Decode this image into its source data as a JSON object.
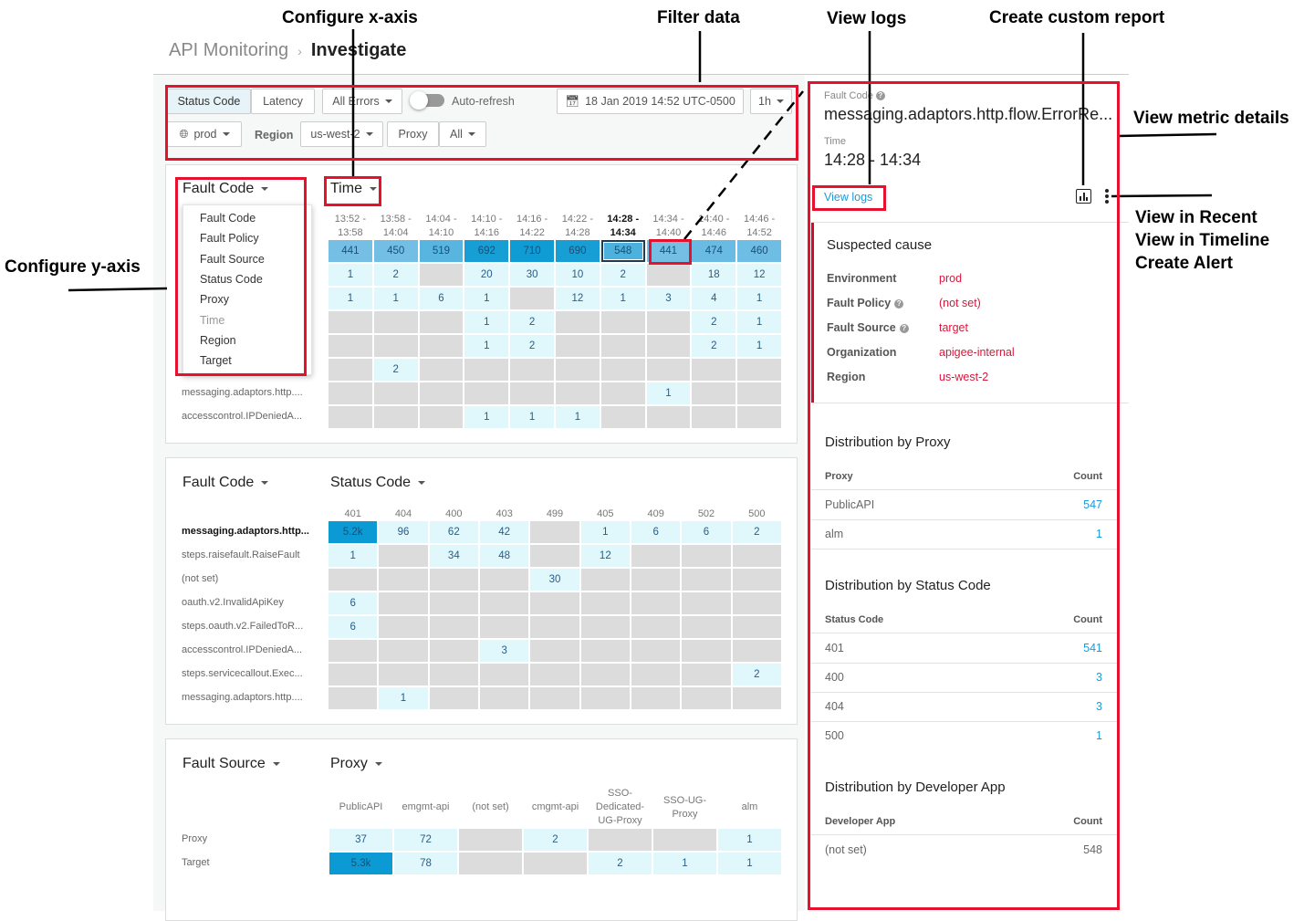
{
  "breadcrumb": {
    "parent": "API Monitoring",
    "current": "Investigate"
  },
  "toolbar": {
    "metric_tabs": [
      {
        "label": "Status Code",
        "selected": true
      },
      {
        "label": "Latency",
        "selected": false
      }
    ],
    "errors_dropdown": "All Errors",
    "auto_refresh": {
      "label": "Auto-refresh",
      "on": false
    },
    "date": "18 Jan 2019 14:52 UTC-0500",
    "range": "1h",
    "environment": "prod",
    "region_label": "Region",
    "region": "us-west-2",
    "proxy_label": "Proxy",
    "proxy": "All"
  },
  "heatmaps": [
    {
      "y_dim": "Fault Code",
      "x_dim": "Time",
      "columns": [
        "13:52 -\n13:58",
        "13:58 -\n14:04",
        "14:04 -\n14:10",
        "14:10 -\n14:16",
        "14:16 -\n14:22",
        "14:22 -\n14:28",
        "14:28 -\n14:34",
        "14:34 -\n14:40",
        "14:40 -\n14:46",
        "14:46 -\n14:52"
      ],
      "selected_column": 6,
      "rows": [
        {
          "label": "",
          "values": [
            "441",
            "450",
            "519",
            "692",
            "710",
            "690",
            "548",
            "441",
            "474",
            "460"
          ]
        },
        {
          "label": "",
          "values": [
            "1",
            "2",
            null,
            "20",
            "30",
            "10",
            "2",
            null,
            "18",
            "12"
          ]
        },
        {
          "label": "",
          "values": [
            "1",
            "1",
            "6",
            "1",
            null,
            "12",
            "1",
            "3",
            "4",
            "1"
          ]
        },
        {
          "label": "",
          "values": [
            null,
            null,
            null,
            "1",
            "2",
            null,
            null,
            null,
            "2",
            "1"
          ]
        },
        {
          "label": "",
          "values": [
            null,
            null,
            null,
            "1",
            "2",
            null,
            null,
            null,
            "2",
            "1"
          ]
        },
        {
          "label": "",
          "values": [
            null,
            "2",
            null,
            null,
            null,
            null,
            null,
            null,
            null,
            null
          ]
        },
        {
          "label": "messaging.adaptors.http....",
          "values": [
            null,
            null,
            null,
            null,
            null,
            null,
            null,
            "1",
            null,
            null
          ]
        },
        {
          "label": "accesscontrol.IPDeniedA...",
          "values": [
            null,
            null,
            null,
            "1",
            "1",
            "1",
            null,
            null,
            null,
            null
          ]
        }
      ],
      "selected_cell": [
        0,
        6
      ],
      "y_menu": {
        "open": true,
        "items": [
          {
            "label": "Fault Code",
            "disabled": false
          },
          {
            "label": "Fault Policy",
            "disabled": false
          },
          {
            "label": "Fault Source",
            "disabled": false
          },
          {
            "label": "Status Code",
            "disabled": false
          },
          {
            "label": "Proxy",
            "disabled": false
          },
          {
            "label": "Time",
            "disabled": true
          },
          {
            "label": "Region",
            "disabled": false
          },
          {
            "label": "Target",
            "disabled": false
          }
        ]
      }
    },
    {
      "y_dim": "Fault Code",
      "x_dim": "Status Code",
      "columns": [
        "401",
        "404",
        "400",
        "403",
        "499",
        "405",
        "409",
        "502",
        "500"
      ],
      "rows": [
        {
          "label": "messaging.adaptors.http...",
          "bold": true,
          "values": [
            "5.2k",
            "96",
            "62",
            "42",
            null,
            "1",
            "6",
            "6",
            "2"
          ]
        },
        {
          "label": "steps.raisefault.RaiseFault",
          "values": [
            "1",
            null,
            "34",
            "48",
            null,
            "12",
            null,
            null,
            null
          ]
        },
        {
          "label": "(not set)",
          "values": [
            null,
            null,
            null,
            null,
            "30",
            null,
            null,
            null,
            null
          ]
        },
        {
          "label": "oauth.v2.InvalidApiKey",
          "values": [
            "6",
            null,
            null,
            null,
            null,
            null,
            null,
            null,
            null
          ]
        },
        {
          "label": "steps.oauth.v2.FailedToR...",
          "values": [
            "6",
            null,
            null,
            null,
            null,
            null,
            null,
            null,
            null
          ]
        },
        {
          "label": "accesscontrol.IPDeniedA...",
          "values": [
            null,
            null,
            null,
            "3",
            null,
            null,
            null,
            null,
            null
          ]
        },
        {
          "label": "steps.servicecallout.Exec...",
          "values": [
            null,
            null,
            null,
            null,
            null,
            null,
            null,
            null,
            "2"
          ]
        },
        {
          "label": "messaging.adaptors.http....",
          "values": [
            null,
            "1",
            null,
            null,
            null,
            null,
            null,
            null,
            null
          ]
        }
      ]
    },
    {
      "y_dim": "Fault Source",
      "x_dim": "Proxy",
      "columns": [
        "PublicAPI",
        "emgmt-api",
        "(not set)",
        "cmgmt-api",
        "SSO-\nDedicated-\nUG-Proxy",
        "SSO-UG-\nProxy",
        "alm"
      ],
      "rows": [
        {
          "label": "Proxy",
          "values": [
            "37",
            "72",
            null,
            "2",
            null,
            null,
            "1"
          ]
        },
        {
          "label": "Target",
          "values": [
            "5.3k",
            "78",
            null,
            null,
            "2",
            "1",
            "1"
          ]
        }
      ]
    }
  ],
  "detail": {
    "fault_code_label": "Fault Code",
    "fault_code": "messaging.adaptors.http.flow.ErrorRe...",
    "time_label": "Time",
    "time": "14:28 - 14:34",
    "view_logs": "View logs",
    "suspected_cause": {
      "title": "Suspected cause",
      "items": [
        {
          "key": "Environment",
          "value": "prod",
          "help": false
        },
        {
          "key": "Fault Policy",
          "value": "(not set)",
          "help": true
        },
        {
          "key": "Fault Source",
          "value": "target",
          "help": true
        },
        {
          "key": "Organization",
          "value": "apigee-internal",
          "help": false
        },
        {
          "key": "Region",
          "value": "us-west-2",
          "help": false
        }
      ]
    },
    "distributions": [
      {
        "title": "Distribution by Proxy",
        "col": "Proxy",
        "count": "Count",
        "rows": [
          {
            "name": "PublicAPI",
            "count": "547",
            "link": true
          },
          {
            "name": "alm",
            "count": "1",
            "link": true
          }
        ]
      },
      {
        "title": "Distribution by Status Code",
        "col": "Status Code",
        "count": "Count",
        "rows": [
          {
            "name": "401",
            "count": "541",
            "link": true
          },
          {
            "name": "400",
            "count": "3",
            "link": true
          },
          {
            "name": "404",
            "count": "3",
            "link": true
          },
          {
            "name": "500",
            "count": "1",
            "link": true
          }
        ]
      },
      {
        "title": "Distribution by Developer App",
        "col": "Developer App",
        "count": "Count",
        "rows": [
          {
            "name": "(not set)",
            "count": "548",
            "link": false
          }
        ]
      }
    ]
  },
  "annotations": {
    "configure_x": "Configure x-axis",
    "filter_data": "Filter data",
    "view_logs": "View logs",
    "custom_report": "Create custom report",
    "metric_details": "View metric details",
    "configure_y": "Configure y-axis",
    "menu_lines": [
      "View in Recent",
      "View in Timeline",
      "Create Alert"
    ]
  },
  "colors": {
    "accent": "#1a9bd7",
    "annotation_red": "#e8112d",
    "cause_red": "#d9173a",
    "empty_cell": "#dcdcdc",
    "low_cell": "#e0f7fb",
    "high_cell": "#0b9ad3"
  }
}
